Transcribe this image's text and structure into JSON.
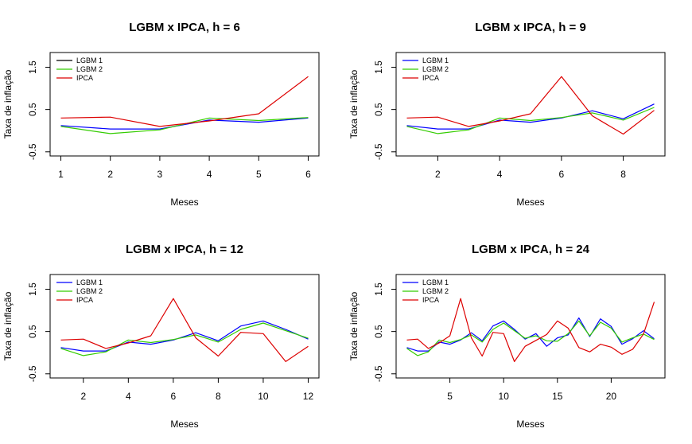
{
  "colors": {
    "lgbm1": "#0000ff",
    "lgbm2": "#33cc00",
    "ipca": "#dd0000",
    "lgbm1_swatch": "#000000"
  },
  "chart_data": [
    {
      "type": "line",
      "title": "LGBM x IPCA, h = 6",
      "xlabel": "Meses",
      "ylabel": "Taxa de inflação",
      "xlim": [
        1,
        6
      ],
      "ylim": [
        -0.5,
        1.75
      ],
      "xticks": [
        1,
        2,
        3,
        4,
        5,
        6
      ],
      "yticks": [
        -0.5,
        0.5,
        1.5
      ],
      "ytick_labels": [
        "-0.5",
        "0.5",
        "1.5"
      ],
      "legend_position": "top-left",
      "legend_entries": [
        "LGBM 1",
        "LGBM 2",
        "IPCA"
      ],
      "x": [
        1,
        2,
        3,
        4,
        5,
        6
      ],
      "series": [
        {
          "name": "LGBM 1",
          "color": "#0000ff",
          "values": [
            0.12,
            0.04,
            0.04,
            0.25,
            0.2,
            0.3
          ]
        },
        {
          "name": "LGBM 2",
          "color": "#33cc00",
          "values": [
            0.1,
            -0.07,
            0.02,
            0.3,
            0.24,
            0.31
          ]
        },
        {
          "name": "IPCA",
          "color": "#dd0000",
          "values": [
            0.3,
            0.32,
            0.1,
            0.23,
            0.4,
            1.28
          ]
        }
      ]
    },
    {
      "type": "line",
      "title": "LGBM x IPCA, h = 9",
      "xlabel": "Meses",
      "ylabel": "Taxa de inflação",
      "xlim": [
        1,
        9
      ],
      "ylim": [
        -0.5,
        1.75
      ],
      "xticks": [
        2,
        4,
        6,
        8
      ],
      "yticks": [
        -0.5,
        0.5,
        1.5
      ],
      "ytick_labels": [
        "-0.5",
        "0.5",
        "1.5"
      ],
      "legend_position": "top-left",
      "legend_entries": [
        "LGBM 1",
        "LGBM 2",
        "IPCA"
      ],
      "x": [
        1,
        2,
        3,
        4,
        5,
        6,
        7,
        8,
        9
      ],
      "series": [
        {
          "name": "LGBM 1",
          "color": "#0000ff",
          "values": [
            0.12,
            0.04,
            0.04,
            0.25,
            0.2,
            0.3,
            0.47,
            0.28,
            0.63
          ]
        },
        {
          "name": "LGBM 2",
          "color": "#33cc00",
          "values": [
            0.1,
            -0.07,
            0.02,
            0.3,
            0.24,
            0.31,
            0.42,
            0.25,
            0.55
          ]
        },
        {
          "name": "IPCA",
          "color": "#dd0000",
          "values": [
            0.3,
            0.32,
            0.1,
            0.23,
            0.4,
            1.28,
            0.35,
            -0.08,
            0.48
          ]
        }
      ]
    },
    {
      "type": "line",
      "title": "LGBM x IPCA, h = 12",
      "xlabel": "Meses",
      "ylabel": "Taxa de inflação",
      "xlim": [
        1,
        12
      ],
      "ylim": [
        -0.5,
        1.75
      ],
      "xticks": [
        2,
        4,
        6,
        8,
        10,
        12
      ],
      "yticks": [
        -0.5,
        0.5,
        1.5
      ],
      "ytick_labels": [
        "-0.5",
        "0.5",
        "1.5"
      ],
      "legend_position": "top-left",
      "legend_entries": [
        "LGBM 1",
        "LGBM 2",
        "IPCA"
      ],
      "x": [
        1,
        2,
        3,
        4,
        5,
        6,
        7,
        8,
        9,
        10,
        11,
        12
      ],
      "series": [
        {
          "name": "LGBM 1",
          "color": "#0000ff",
          "values": [
            0.12,
            0.04,
            0.04,
            0.25,
            0.2,
            0.3,
            0.47,
            0.28,
            0.63,
            0.75,
            0.55,
            0.32
          ]
        },
        {
          "name": "LGBM 2",
          "color": "#33cc00",
          "values": [
            0.1,
            -0.07,
            0.02,
            0.3,
            0.24,
            0.31,
            0.42,
            0.25,
            0.55,
            0.7,
            0.52,
            0.34
          ]
        },
        {
          "name": "IPCA",
          "color": "#dd0000",
          "values": [
            0.3,
            0.32,
            0.1,
            0.23,
            0.4,
            1.28,
            0.35,
            -0.08,
            0.48,
            0.45,
            -0.21,
            0.15
          ]
        }
      ]
    },
    {
      "type": "line",
      "title": "LGBM x IPCA, h = 24",
      "xlabel": "Meses",
      "ylabel": "Taxa de inflação",
      "xlim": [
        1,
        24
      ],
      "ylim": [
        -0.5,
        1.75
      ],
      "xticks": [
        5,
        10,
        15,
        20
      ],
      "yticks": [
        -0.5,
        0.5,
        1.5
      ],
      "ytick_labels": [
        "-0.5",
        "0.5",
        "1.5"
      ],
      "legend_position": "top-left",
      "legend_entries": [
        "LGBM 1",
        "LGBM 2",
        "IPCA"
      ],
      "x": [
        1,
        2,
        3,
        4,
        5,
        6,
        7,
        8,
        9,
        10,
        11,
        12,
        13,
        14,
        15,
        16,
        17,
        18,
        19,
        20,
        21,
        22,
        23,
        24
      ],
      "series": [
        {
          "name": "LGBM 1",
          "color": "#0000ff",
          "values": [
            0.12,
            0.04,
            0.04,
            0.25,
            0.2,
            0.3,
            0.47,
            0.28,
            0.63,
            0.75,
            0.55,
            0.32,
            0.45,
            0.15,
            0.35,
            0.42,
            0.82,
            0.38,
            0.8,
            0.62,
            0.2,
            0.33,
            0.52,
            0.33
          ]
        },
        {
          "name": "LGBM 2",
          "color": "#33cc00",
          "values": [
            0.1,
            -0.07,
            0.02,
            0.3,
            0.24,
            0.31,
            0.42,
            0.25,
            0.55,
            0.7,
            0.52,
            0.34,
            0.4,
            0.28,
            0.27,
            0.45,
            0.75,
            0.4,
            0.72,
            0.58,
            0.25,
            0.35,
            0.44,
            0.31
          ]
        },
        {
          "name": "IPCA",
          "color": "#dd0000",
          "values": [
            0.3,
            0.32,
            0.1,
            0.23,
            0.4,
            1.28,
            0.35,
            -0.08,
            0.48,
            0.45,
            -0.21,
            0.15,
            0.29,
            0.43,
            0.75,
            0.58,
            0.12,
            0.02,
            0.2,
            0.13,
            -0.04,
            0.08,
            0.44,
            1.2
          ]
        }
      ]
    }
  ]
}
